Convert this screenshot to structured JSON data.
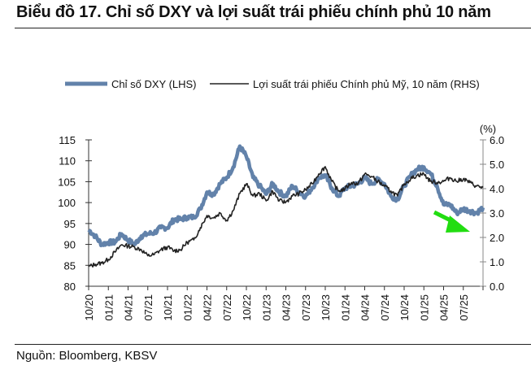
{
  "title": "Biểu đồ 17. Chỉ số DXY và lợi suất trái phiếu chính phủ 10 năm",
  "source": "Nguồn: Bloomberg, KBSV",
  "chart_data": {
    "type": "line",
    "title": "Biểu đồ 17. Chỉ số DXY và lợi suất trái phiếu chính phủ 10 năm",
    "x_tick_labels": [
      "10/20",
      "01/21",
      "04/21",
      "07/21",
      "10/21",
      "01/22",
      "04/22",
      "07/22",
      "10/22",
      "01/23",
      "04/23",
      "07/23",
      "10/23",
      "01/24",
      "04/24",
      "07/24",
      "10/24",
      "01/25",
      "04/25",
      "07/25"
    ],
    "x": [
      "10/20",
      "11/20",
      "12/20",
      "01/21",
      "02/21",
      "03/21",
      "04/21",
      "05/21",
      "06/21",
      "07/21",
      "08/21",
      "09/21",
      "10/21",
      "11/21",
      "12/21",
      "01/22",
      "02/22",
      "03/22",
      "04/22",
      "05/22",
      "06/22",
      "07/22",
      "08/22",
      "09/22",
      "10/22",
      "11/22",
      "12/22",
      "01/23",
      "02/23",
      "03/23",
      "04/23",
      "05/23",
      "06/23",
      "07/23",
      "08/23",
      "09/23",
      "10/23",
      "11/23",
      "12/23",
      "01/24",
      "02/24",
      "03/24",
      "04/24",
      "05/24",
      "06/24",
      "07/24",
      "08/24",
      "09/24",
      "10/24",
      "11/24",
      "12/24",
      "01/25",
      "02/25",
      "03/25",
      "04/25",
      "05/25",
      "06/25",
      "07/25",
      "08/25",
      "09/25",
      "10/25"
    ],
    "left_axis": {
      "ticks": [
        80,
        85,
        90,
        95,
        100,
        105,
        110,
        115
      ],
      "range": [
        80,
        115
      ]
    },
    "right_axis": {
      "unit_label": "(%)",
      "ticks": [
        "0.0",
        "1.0",
        "2.0",
        "3.0",
        "4.0",
        "5.0",
        "6.0"
      ],
      "range": [
        0,
        6
      ]
    },
    "legend_position": "top",
    "grid": false,
    "series": [
      {
        "name": "Chỉ số DXY (LHS)",
        "axis": "left",
        "color": "#6282aa",
        "values": [
          93.5,
          92,
          90,
          90.5,
          90.5,
          92.5,
          91,
          90,
          92,
          92.5,
          92.8,
          94,
          94,
          96,
          96,
          96.5,
          96.5,
          98.5,
          102.5,
          102,
          104.5,
          106,
          108.5,
          113.5,
          111,
          106,
          104,
          102,
          104.5,
          102.5,
          101.5,
          104,
          102.5,
          101.5,
          103.5,
          106,
          106.5,
          103.5,
          101.5,
          103.5,
          104,
          104.5,
          106,
          104.5,
          105.5,
          104.5,
          101.5,
          100.8,
          104,
          106.5,
          108,
          108.5,
          107,
          104,
          99.5,
          99.5,
          97.5,
          98.5,
          98,
          97.5,
          98.8
        ]
      },
      {
        "name": "Lợi suất trái phiếu Chính phủ Mỹ, 10 năm (RHS)",
        "axis": "right",
        "color": "#222222",
        "values": [
          0.8,
          0.9,
          0.95,
          1.1,
          1.4,
          1.7,
          1.65,
          1.6,
          1.5,
          1.25,
          1.3,
          1.5,
          1.6,
          1.45,
          1.5,
          1.8,
          1.9,
          2.4,
          2.9,
          2.8,
          3.0,
          2.7,
          3.1,
          3.8,
          4.2,
          3.7,
          3.8,
          3.5,
          3.9,
          3.5,
          3.45,
          3.7,
          3.8,
          3.95,
          4.2,
          4.6,
          4.9,
          4.3,
          3.9,
          4.0,
          4.25,
          4.2,
          4.6,
          4.5,
          4.3,
          4.1,
          3.9,
          3.7,
          4.2,
          4.4,
          4.55,
          4.6,
          4.3,
          4.25,
          4.3,
          4.45,
          4.3,
          4.4,
          4.25,
          4.1,
          4.05
        ]
      }
    ],
    "annotation": {
      "type": "arrow",
      "color": "#22dd11",
      "direction": "down-right"
    }
  }
}
